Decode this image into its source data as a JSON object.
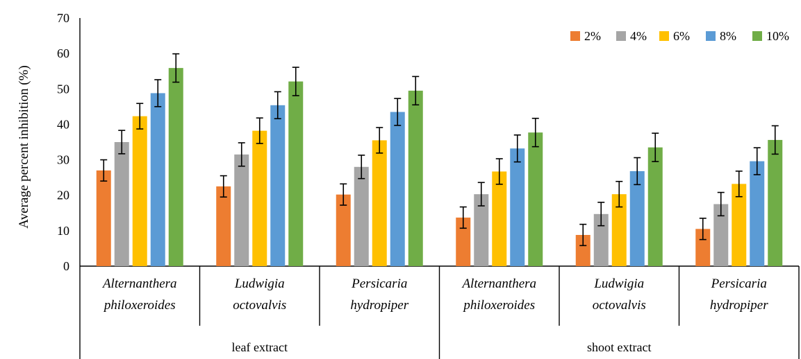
{
  "chart_data": {
    "type": "bar",
    "ylabel": "Average percent inhibition (%)",
    "ylim": [
      0,
      70
    ],
    "yticks": [
      0,
      10,
      20,
      30,
      40,
      50,
      60,
      70
    ],
    "grid": false,
    "legend_position": "top-right",
    "groups": [
      {
        "label": "leaf extract",
        "categories": [
          [
            "Alternanthera",
            "philoxeroides"
          ],
          [
            "Ludwigia",
            "octovalvis"
          ],
          [
            "Persicaria",
            "hydropiper"
          ]
        ]
      },
      {
        "label": "shoot extract",
        "categories": [
          [
            "Alternanthera",
            "philoxeroides"
          ],
          [
            "Ludwigia",
            "octovalvis"
          ],
          [
            "Persicaria",
            "hydropiper"
          ]
        ]
      }
    ],
    "series": [
      {
        "name": "2%",
        "color": "#ED7D31",
        "values": [
          27.0,
          22.5,
          20.2,
          13.7,
          8.8,
          10.5
        ],
        "errors": [
          3.0,
          3.0,
          3.0,
          3.0,
          3.0,
          3.0
        ]
      },
      {
        "name": "4%",
        "color": "#A5A5A5",
        "values": [
          35.0,
          31.5,
          28.0,
          20.3,
          14.7,
          17.5
        ],
        "errors": [
          3.3,
          3.3,
          3.3,
          3.3,
          3.3,
          3.3
        ]
      },
      {
        "name": "6%",
        "color": "#FFC000",
        "values": [
          42.3,
          38.2,
          35.5,
          26.7,
          20.3,
          23.2
        ],
        "errors": [
          3.6,
          3.6,
          3.6,
          3.6,
          3.6,
          3.6
        ]
      },
      {
        "name": "8%",
        "color": "#5B9BD5",
        "values": [
          48.8,
          45.4,
          43.5,
          33.2,
          26.8,
          29.6
        ],
        "errors": [
          3.8,
          3.8,
          3.8,
          3.8,
          3.8,
          3.8
        ]
      },
      {
        "name": "10%",
        "color": "#70AD47",
        "values": [
          55.9,
          52.1,
          49.5,
          37.7,
          33.5,
          35.6
        ],
        "errors": [
          4.0,
          4.0,
          4.0,
          4.0,
          4.0,
          4.0
        ]
      }
    ]
  }
}
